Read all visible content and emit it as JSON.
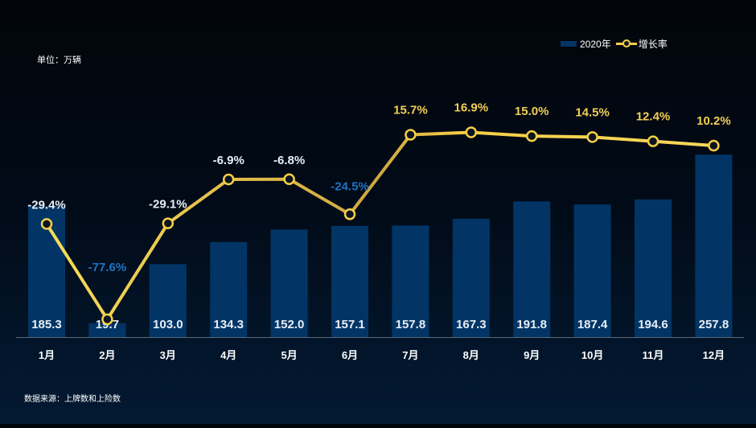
{
  "unit_label": "单位：万辆",
  "source_label": "数据来源：上牌数和上险数",
  "colors": {
    "bar": "#023565",
    "line": "#f5cf45",
    "label_white": "#e8eef6",
    "label_yellow": "#f3cf57",
    "label_blue": "#1f73c4"
  },
  "chart_data": {
    "type": "bar",
    "categories": [
      "1月",
      "2月",
      "3月",
      "4月",
      "5月",
      "6月",
      "7月",
      "8月",
      "9月",
      "10月",
      "11月",
      "12月"
    ],
    "series": [
      {
        "name": "2020年",
        "type": "bar",
        "values": [
          185.3,
          19.7,
          103.0,
          134.3,
          152.0,
          157.1,
          157.8,
          167.3,
          191.8,
          187.4,
          194.6,
          257.8
        ],
        "labels": [
          "185.3",
          "19.7",
          "103.0",
          "134.3",
          "152.0",
          "157.1",
          "157.8",
          "167.3",
          "191.8",
          "187.4",
          "194.6",
          "257.8"
        ]
      },
      {
        "name": "增长率",
        "type": "line",
        "values": [
          -29.4,
          -77.6,
          -29.1,
          -6.9,
          -6.8,
          -24.5,
          15.7,
          16.9,
          15.0,
          14.5,
          12.4,
          10.2
        ],
        "labels": [
          "-29.4%",
          "-77.6%",
          "-29.1%",
          "-6.9%",
          "-6.8%",
          "-24.5%",
          "15.7%",
          "16.9%",
          "15.0%",
          "14.5%",
          "12.4%",
          "10.2%"
        ]
      }
    ],
    "bar_axis_range": [
      0,
      340
    ],
    "line_axis_range": [
      -87,
      35
    ],
    "grid": false,
    "legend_position": "top-right",
    "title": "",
    "xlabel": "",
    "ylabel": ""
  }
}
